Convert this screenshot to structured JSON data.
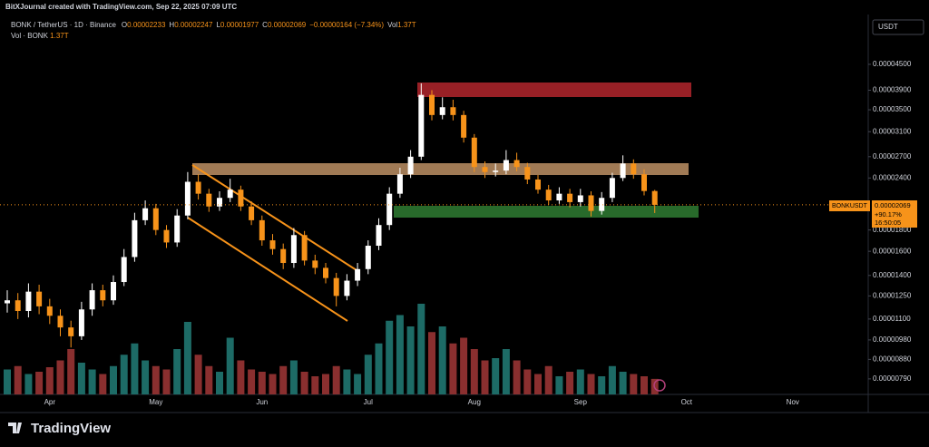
{
  "header": {
    "credit": "BitXJournal created with TradingView.com, Sep 22, 2025 07:09 UTC",
    "symbol": "BONK / TetherUS · 1D · Binance",
    "ohlc": [
      {
        "key": "O",
        "value": 2.233e-05
      },
      {
        "key": "H",
        "value": 2.247e-05
      },
      {
        "key": "L",
        "value": 1.977e-05
      },
      {
        "key": "C",
        "value": 2.069e-05
      }
    ],
    "change": "−0.00000164 (−7.34%)",
    "vol_key": "Vol",
    "vol_value": "1.37T",
    "vol_study": "Vol · BONK",
    "vol_study_value": "1.37T"
  },
  "currency": "USDT",
  "price_tag": {
    "symbol": "BONKUSDT",
    "change": "+90.17%",
    "countdown": "16:50:05"
  },
  "brand": "TradingView",
  "chart_data": {
    "type": "candlestick",
    "log": true,
    "grid": false,
    "up_color": "#ffffff",
    "down_color": "#f7931a",
    "volume_up_color": "#1d6b66",
    "volume_down_color": "#8a2f2f",
    "ylim": [
      7.25e-06,
      5.81e-05
    ],
    "yticks": [
      {
        "value": 4.5e-05,
        "label": "0.00004500"
      },
      {
        "value": 3.9e-05,
        "label": "0.00003900"
      },
      {
        "value": 3.5e-05,
        "label": "0.00003500"
      },
      {
        "value": 3.1e-05,
        "label": "0.00003100"
      },
      {
        "value": 2.7e-05,
        "label": "0.00002700"
      },
      {
        "value": 2.4e-05,
        "label": "0.00002400"
      },
      {
        "value": 1.8e-05,
        "label": "0.00001800"
      },
      {
        "value": 1.6e-05,
        "label": "0.00001600"
      },
      {
        "value": 1.4e-05,
        "label": "0.00001400"
      },
      {
        "value": 1.25e-05,
        "label": "0.00001250"
      },
      {
        "value": 1.1e-05,
        "label": "0.00001100"
      },
      {
        "value": 9.8e-06,
        "label": "0.00000980"
      },
      {
        "value": 8.8e-06,
        "label": "0.00000880"
      },
      {
        "value": 7.9e-06,
        "label": "0.00000790"
      }
    ],
    "categories": [
      null,
      null,
      null,
      null,
      "Apr",
      null,
      null,
      null,
      null,
      null,
      null,
      null,
      null,
      null,
      "May",
      null,
      null,
      null,
      null,
      null,
      null,
      null,
      null,
      null,
      "Jun",
      null,
      null,
      null,
      null,
      null,
      null,
      null,
      null,
      null,
      "Jul",
      null,
      null,
      null,
      null,
      null,
      null,
      null,
      null,
      null,
      "Aug",
      null,
      null,
      null,
      null,
      null,
      null,
      null,
      null,
      null,
      "Sep",
      null,
      null,
      null,
      null,
      null,
      null,
      null,
      null,
      null,
      "Oct",
      null,
      null,
      null,
      null,
      null,
      null,
      null,
      null,
      null,
      "Nov",
      null,
      null,
      null,
      null,
      null,
      null,
      null
    ],
    "open": [
      1.2e-05,
      1.22e-05,
      1.15e-05,
      1.28e-05,
      1.18e-05,
      1.12e-05,
      1.05e-05,
      1e-05,
      1.16e-05,
      1.29e-05,
      1.22e-05,
      1.35e-05,
      1.55e-05,
      1.9e-05,
      2.03e-05,
      1.8e-05,
      1.68e-05,
      1.95e-05,
      2.35e-05,
      2.2e-05,
      2.05e-05,
      2.15e-05,
      2.25e-05,
      2.05e-05,
      1.9e-05,
      1.7e-05,
      1.62e-05,
      1.5e-05,
      1.75e-05,
      1.52e-05,
      1.46e-05,
      1.38e-05,
      1.25e-05,
      1.36e-05,
      1.45e-05,
      1.65e-05,
      1.85e-05,
      2.2e-05,
      2.45e-05,
      2.7e-05,
      3.8e-05,
      3.4e-05,
      3.55e-05,
      3.4e-05,
      3e-05,
      2.55e-05,
      2.48e-05,
      2.5e-05,
      2.65e-05,
      2.55e-05,
      2.38e-05,
      2.25e-05,
      2.12e-05,
      2.2e-05,
      2.1e-05,
      2.18e-05,
      2e-05,
      2.15e-05,
      2.4e-05,
      2.6e-05,
      2.45e-05,
      2.233e-05,
      null,
      null,
      null,
      null,
      null,
      null,
      null,
      null,
      null,
      null,
      null,
      null,
      null,
      null,
      null,
      null,
      null,
      null,
      null,
      null
    ],
    "high": [
      1.29e-05,
      1.27e-05,
      1.34e-05,
      1.33e-05,
      1.23e-05,
      1.16e-05,
      1.09e-05,
      1.21e-05,
      1.34e-05,
      1.33e-05,
      1.4e-05,
      1.62e-05,
      1.98e-05,
      2.12e-05,
      2.08e-05,
      1.85e-05,
      2.02e-05,
      2.48e-05,
      2.45e-05,
      2.26e-05,
      2.23e-05,
      2.39e-05,
      2.3e-05,
      2.11e-05,
      1.95e-05,
      1.76e-05,
      1.67e-05,
      1.82e-05,
      1.79e-05,
      1.57e-05,
      1.5e-05,
      1.42e-05,
      1.41e-05,
      1.5e-05,
      1.7e-05,
      1.92e-05,
      2.28e-05,
      2.54e-05,
      2.8e-05,
      4.05e-05,
      3.9e-05,
      3.75e-05,
      3.7e-05,
      3.48e-05,
      3.06e-05,
      2.63e-05,
      2.6e-05,
      2.8e-05,
      2.76e-05,
      2.61e-05,
      2.44e-05,
      2.31e-05,
      2.28e-05,
      2.26e-05,
      2.26e-05,
      2.23e-05,
      2.22e-05,
      2.47e-05,
      2.72e-05,
      2.66e-05,
      2.52e-05,
      2.247e-05,
      null,
      null,
      null,
      null,
      null,
      null,
      null,
      null,
      null,
      null,
      null,
      null,
      null,
      null,
      null,
      null,
      null,
      null,
      null,
      null
    ],
    "low": [
      1.14e-05,
      1.1e-05,
      1.11e-05,
      1.13e-05,
      1.07e-05,
      1e-05,
      9.4e-06,
      9.8e-06,
      1.12e-05,
      1.18e-05,
      1.19e-05,
      1.32e-05,
      1.51e-05,
      1.85e-05,
      1.75e-05,
      1.63e-05,
      1.64e-05,
      1.91e-05,
      2.13e-05,
      1.99e-05,
      2e-05,
      2.1e-05,
      2e-05,
      1.85e-05,
      1.65e-05,
      1.57e-05,
      1.45e-05,
      1.46e-05,
      1.48e-05,
      1.41e-05,
      1.34e-05,
      1.18e-05,
      1.22e-05,
      1.32e-05,
      1.41e-05,
      1.61e-05,
      1.8e-05,
      2.15e-05,
      2.4e-05,
      2.65e-05,
      3.3e-05,
      3.32e-05,
      3.3e-05,
      2.92e-05,
      2.48e-05,
      2.4e-05,
      2.42e-05,
      2.45e-05,
      2.49e-05,
      2.32e-05,
      2.2e-05,
      2.07e-05,
      2.08e-05,
      2.04e-05,
      2.05e-05,
      1.94e-05,
      1.96e-05,
      2.1e-05,
      2.36e-05,
      2.39e-05,
      2.18e-05,
      1.977e-05,
      null,
      null,
      null,
      null,
      null,
      null,
      null,
      null,
      null,
      null,
      null,
      null,
      null,
      null,
      null,
      null,
      null,
      null,
      null,
      null
    ],
    "close": [
      1.22e-05,
      1.15e-05,
      1.28e-05,
      1.18e-05,
      1.12e-05,
      1.05e-05,
      1e-05,
      1.16e-05,
      1.29e-05,
      1.22e-05,
      1.35e-05,
      1.55e-05,
      1.9e-05,
      2.03e-05,
      1.8e-05,
      1.68e-05,
      1.95e-05,
      2.35e-05,
      2.2e-05,
      2.05e-05,
      2.15e-05,
      2.25e-05,
      2.05e-05,
      1.9e-05,
      1.7e-05,
      1.62e-05,
      1.5e-05,
      1.75e-05,
      1.52e-05,
      1.46e-05,
      1.38e-05,
      1.25e-05,
      1.36e-05,
      1.45e-05,
      1.65e-05,
      1.85e-05,
      2.2e-05,
      2.45e-05,
      2.7e-05,
      3.8e-05,
      3.4e-05,
      3.55e-05,
      3.4e-05,
      3e-05,
      2.55e-05,
      2.48e-05,
      2.5e-05,
      2.65e-05,
      2.55e-05,
      2.38e-05,
      2.25e-05,
      2.12e-05,
      2.2e-05,
      2.1e-05,
      2.18e-05,
      2e-05,
      2.15e-05,
      2.4e-05,
      2.6e-05,
      2.45e-05,
      2.233e-05,
      2.069e-05,
      null,
      null,
      null,
      null,
      null,
      null,
      null,
      null,
      null,
      null,
      null,
      null,
      null,
      null,
      null,
      null,
      null,
      null,
      null,
      null
    ],
    "volume": [
      2200000000000.0,
      2500000000000.0,
      1800000000000.0,
      2000000000000.0,
      2400000000000.0,
      3000000000000.0,
      4000000000000.0,
      2800000000000.0,
      2200000000000.0,
      1800000000000.0,
      2500000000000.0,
      3500000000000.0,
      4500000000000.0,
      3000000000000.0,
      2500000000000.0,
      2200000000000.0,
      4000000000000.0,
      6400000000000.0,
      3500000000000.0,
      2500000000000.0,
      2000000000000.0,
      5000000000000.0,
      3000000000000.0,
      2200000000000.0,
      2000000000000.0,
      1800000000000.0,
      2500000000000.0,
      3000000000000.0,
      2000000000000.0,
      1600000000000.0,
      1800000000000.0,
      2500000000000.0,
      2200000000000.0,
      1800000000000.0,
      3500000000000.0,
      4500000000000.0,
      6500000000000.0,
      7000000000000.0,
      6000000000000.0,
      8000000000000.0,
      5500000000000.0,
      6000000000000.0,
      4500000000000.0,
      5000000000000.0,
      4000000000000.0,
      3000000000000.0,
      3200000000000.0,
      4000000000000.0,
      3000000000000.0,
      2200000000000.0,
      1800000000000.0,
      2500000000000.0,
      1600000000000.0,
      2000000000000.0,
      2200000000000.0,
      1800000000000.0,
      1600000000000.0,
      2500000000000.0,
      2000000000000.0,
      1800000000000.0,
      1600000000000.0,
      1370000000000.0,
      null,
      null,
      null,
      null,
      null,
      null,
      null,
      null,
      null,
      null,
      null,
      null,
      null,
      null,
      null,
      null,
      null,
      null,
      null,
      null
    ]
  }
}
